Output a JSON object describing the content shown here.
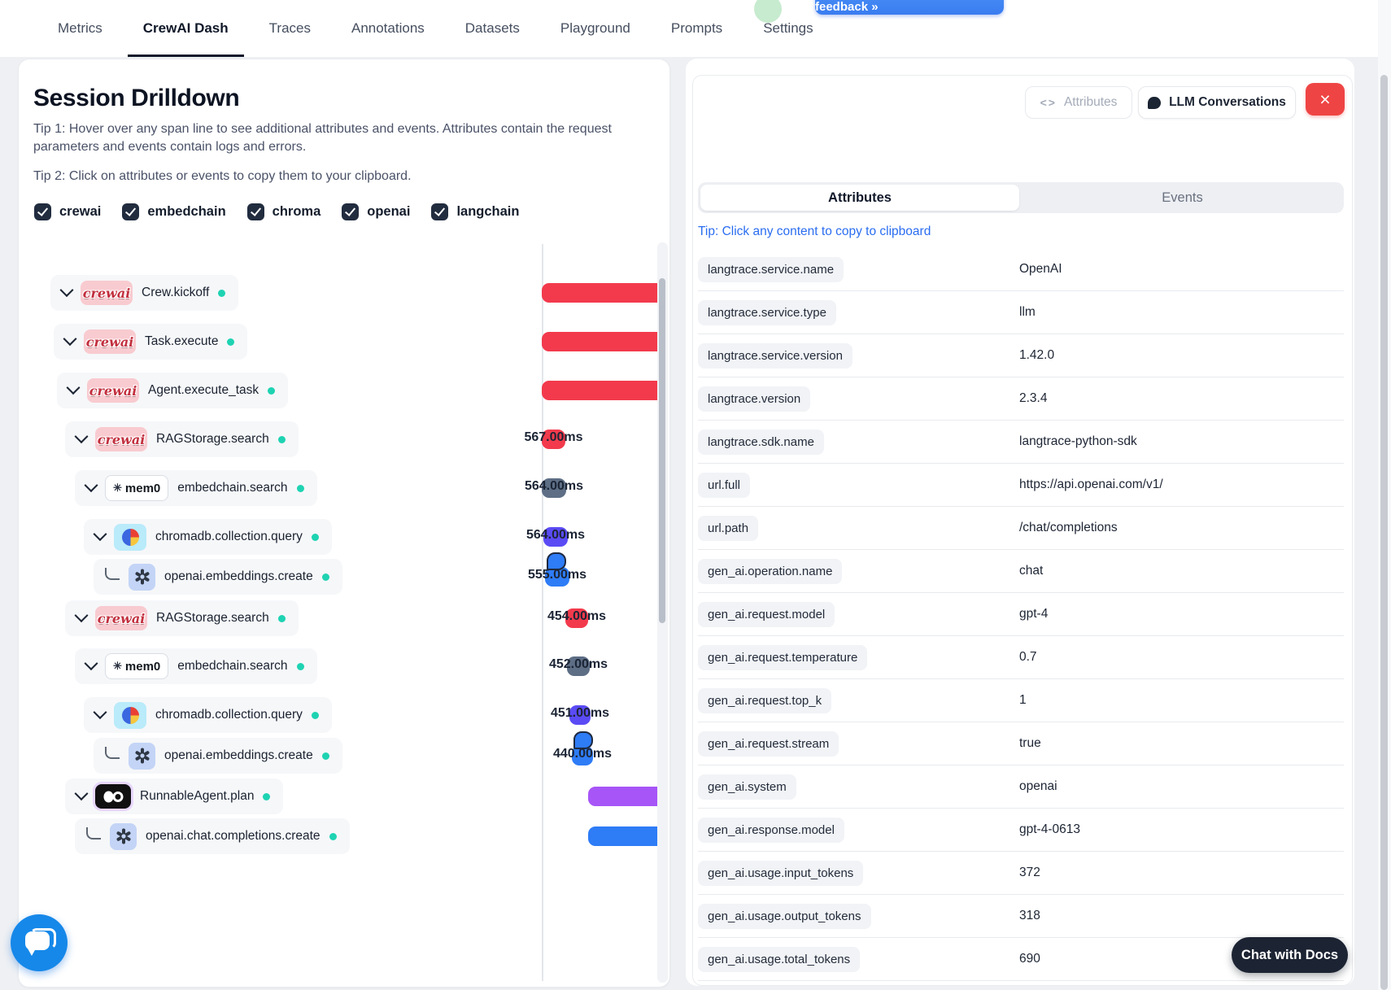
{
  "nav": {
    "tabs": [
      {
        "label": "Metrics",
        "active": false
      },
      {
        "label": "CrewAI Dash",
        "active": true
      },
      {
        "label": "Traces",
        "active": false
      },
      {
        "label": "Annotations",
        "active": false
      },
      {
        "label": "Datasets",
        "active": false
      },
      {
        "label": "Playground",
        "active": false
      },
      {
        "label": "Prompts",
        "active": false
      },
      {
        "label": "Settings",
        "active": false
      }
    ],
    "credits_button": "Get more FREE credits for feedback  »"
  },
  "drilldown": {
    "title": "Session Drilldown",
    "tip1": "Tip 1: Hover over any span line to see additional attributes and events. Attributes contain the request parameters and events contain logs and errors.",
    "tip2": "Tip 2: Click on attributes or events to copy them to your clipboard."
  },
  "filters": [
    {
      "label": "crewai",
      "checked": true
    },
    {
      "label": "embedchain",
      "checked": true
    },
    {
      "label": "chroma",
      "checked": true
    },
    {
      "label": "openai",
      "checked": true
    },
    {
      "label": "langchain",
      "checked": true
    }
  ],
  "spans": [
    {
      "name": "Crew.kickoff",
      "icon": "crewai",
      "connector": "chevron",
      "duration": "",
      "bar_color": "red",
      "bubble": false
    },
    {
      "name": "Task.execute",
      "icon": "crewai",
      "connector": "chevron",
      "duration": "",
      "bar_color": "red",
      "bubble": false
    },
    {
      "name": "Agent.execute_task",
      "icon": "crewai",
      "connector": "chevron",
      "duration": "",
      "bar_color": "red",
      "bubble": false
    },
    {
      "name": "RAGStorage.search",
      "icon": "crewai",
      "connector": "chevron",
      "duration": "567.00ms",
      "bar_color": "red",
      "bubble": false
    },
    {
      "name": "embedchain.search",
      "icon": "mem0",
      "connector": "chevron",
      "duration": "564.00ms",
      "bar_color": "slate",
      "bubble": false
    },
    {
      "name": "chromadb.collection.query",
      "icon": "chroma",
      "connector": "chevron",
      "duration": "564.00ms",
      "bar_color": "indigo",
      "bubble": false
    },
    {
      "name": "openai.embeddings.create",
      "icon": "openai",
      "connector": "elbow",
      "duration": "555.00ms",
      "bar_color": "blue",
      "bubble": true
    },
    {
      "name": "RAGStorage.search",
      "icon": "crewai",
      "connector": "chevron",
      "duration": "454.00ms",
      "bar_color": "red",
      "bubble": false
    },
    {
      "name": "embedchain.search",
      "icon": "mem0",
      "connector": "chevron",
      "duration": "452.00ms",
      "bar_color": "slate",
      "bubble": false
    },
    {
      "name": "chromadb.collection.query",
      "icon": "chroma",
      "connector": "chevron",
      "duration": "451.00ms",
      "bar_color": "indigo",
      "bubble": false
    },
    {
      "name": "openai.embeddings.create",
      "icon": "openai",
      "connector": "elbow",
      "duration": "440.00ms",
      "bar_color": "blue",
      "bubble": true
    },
    {
      "name": "RunnableAgent.plan",
      "icon": "langchain",
      "connector": "chevron",
      "duration": "",
      "bar_color": "purple",
      "bubble": false
    },
    {
      "name": "openai.chat.completions.create",
      "icon": "openai",
      "connector": "elbow",
      "duration": "",
      "bar_color": "blue",
      "bubble": false
    }
  ],
  "panel": {
    "attributes_button": "Attributes",
    "llm_button": "LLM Conversations",
    "tabs": {
      "attributes": "Attributes",
      "events": "Events"
    },
    "copy_tip": "Tip: Click any content to copy to clipboard",
    "attributes": [
      {
        "key": "langtrace.service.name",
        "value": "OpenAI"
      },
      {
        "key": "langtrace.service.type",
        "value": "llm"
      },
      {
        "key": "langtrace.service.version",
        "value": "1.42.0"
      },
      {
        "key": "langtrace.version",
        "value": "2.3.4"
      },
      {
        "key": "langtrace.sdk.name",
        "value": "langtrace-python-sdk"
      },
      {
        "key": "url.full",
        "value": "https://api.openai.com/v1/"
      },
      {
        "key": "url.path",
        "value": "/chat/completions"
      },
      {
        "key": "gen_ai.operation.name",
        "value": "chat"
      },
      {
        "key": "gen_ai.request.model",
        "value": "gpt-4"
      },
      {
        "key": "gen_ai.request.temperature",
        "value": "0.7"
      },
      {
        "key": "gen_ai.request.top_k",
        "value": "1"
      },
      {
        "key": "gen_ai.request.stream",
        "value": "true"
      },
      {
        "key": "gen_ai.system",
        "value": "openai"
      },
      {
        "key": "gen_ai.response.model",
        "value": "gpt-4-0613"
      },
      {
        "key": "gen_ai.usage.input_tokens",
        "value": "372"
      },
      {
        "key": "gen_ai.usage.output_tokens",
        "value": "318"
      },
      {
        "key": "gen_ai.usage.total_tokens",
        "value": "690"
      }
    ]
  },
  "widgets": {
    "chat_with_docs": "Chat with Docs"
  },
  "colors": {
    "red": "#f23a4c",
    "slate": "#5d6e85",
    "indigo": "#5a4bf5",
    "blue": "#2e7cf6",
    "purple": "#a755f7",
    "status_teal": "#1ed3b2",
    "accent_blue": "#3a7cf0",
    "close_red": "#ef4444"
  }
}
